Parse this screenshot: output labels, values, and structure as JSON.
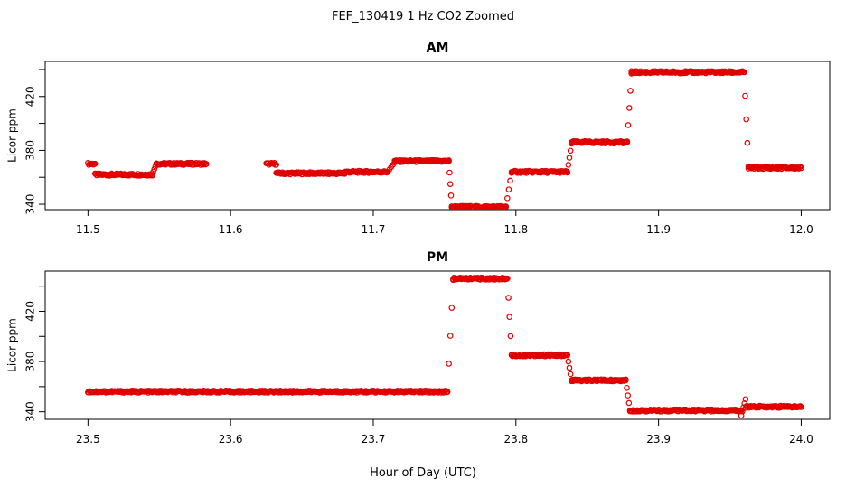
{
  "figure": {
    "title": "FEF_130419  1 Hz CO2 Zoomed",
    "xlabel": "Hour of Day (UTC)"
  },
  "chart_data": [
    {
      "type": "scatter",
      "title": "AM",
      "ylabel": "Licor ppm",
      "xlim": [
        11.47,
        12.02
      ],
      "ylim": [
        336,
        446
      ],
      "x_ticks": [
        "11.5",
        "11.6",
        "11.7",
        "11.8",
        "11.9",
        "12.0"
      ],
      "y_ticks": [
        "340",
        "380",
        "420"
      ],
      "grid": false,
      "marker_color": "#e00000",
      "series": [
        {
          "segments": [
            {
              "x": [
                11.5,
                11.505
              ],
              "y": 370
            },
            {
              "x": [
                11.505,
                11.545
              ],
              "y": 362
            },
            {
              "x": [
                11.545,
                11.548
              ],
              "y": [
                362,
                370
              ]
            },
            {
              "x": [
                11.548,
                11.583
              ],
              "y": 370
            },
            {
              "x": [
                11.625,
                11.632
              ],
              "y": 370
            },
            {
              "x": [
                11.632,
                11.64
              ],
              "y": 363
            },
            {
              "x": [
                11.64,
                11.68
              ],
              "y": 363
            },
            {
              "x": [
                11.68,
                11.71
              ],
              "y": 364
            },
            {
              "x": [
                11.71,
                11.715
              ],
              "y": [
                364,
                371
              ]
            },
            {
              "x": [
                11.715,
                11.753
              ],
              "y": 372
            },
            {
              "x": [
                11.753,
                11.755
              ],
              "y": [
                372,
                338
              ]
            },
            {
              "x": [
                11.755,
                11.793
              ],
              "y": 338
            },
            {
              "x": [
                11.793,
                11.797
              ],
              "y": [
                338,
                364
              ]
            },
            {
              "x": [
                11.797,
                11.836
              ],
              "y": 364
            },
            {
              "x": [
                11.836,
                11.839
              ],
              "y": [
                364,
                385
              ]
            },
            {
              "x": [
                11.839,
                11.878
              ],
              "y": 386
            },
            {
              "x": [
                11.878,
                11.881
              ],
              "y": [
                386,
                437
              ]
            },
            {
              "x": [
                11.881,
                11.96
              ],
              "y": 438
            },
            {
              "x": [
                11.96,
                11.963
              ],
              "y": [
                438,
                368
              ]
            },
            {
              "x": [
                11.963,
                12.0
              ],
              "y": 367
            }
          ]
        }
      ]
    },
    {
      "type": "scatter",
      "title": "PM",
      "ylabel": "Licor ppm",
      "xlim": [
        23.47,
        24.02
      ],
      "ylim": [
        334,
        452
      ],
      "x_ticks": [
        "23.5",
        "23.6",
        "23.7",
        "23.8",
        "23.9",
        "24.0"
      ],
      "y_ticks": [
        "340",
        "380",
        "420"
      ],
      "grid": false,
      "marker_color": "#e00000",
      "series": [
        {
          "segments": [
            {
              "x": [
                23.5,
                23.752
              ],
              "y": 356
            },
            {
              "x": [
                23.752,
                23.756
              ],
              "y": [
                356,
                445
              ]
            },
            {
              "x": [
                23.756,
                23.794
              ],
              "y": 446
            },
            {
              "x": [
                23.794,
                23.797
              ],
              "y": [
                446,
                385
              ]
            },
            {
              "x": [
                23.797,
                23.836
              ],
              "y": 385
            },
            {
              "x": [
                23.836,
                23.839
              ],
              "y": [
                385,
                365
              ]
            },
            {
              "x": [
                23.839,
                23.877
              ],
              "y": 365
            },
            {
              "x": [
                23.877,
                23.88
              ],
              "y": [
                365,
                341
              ]
            },
            {
              "x": [
                23.88,
                23.958
              ],
              "y": 341
            },
            {
              "x": [
                23.958,
                23.961
              ],
              "y": [
                337,
                350
              ]
            },
            {
              "x": [
                23.961,
                24.0
              ],
              "y": 344
            }
          ]
        }
      ]
    }
  ]
}
